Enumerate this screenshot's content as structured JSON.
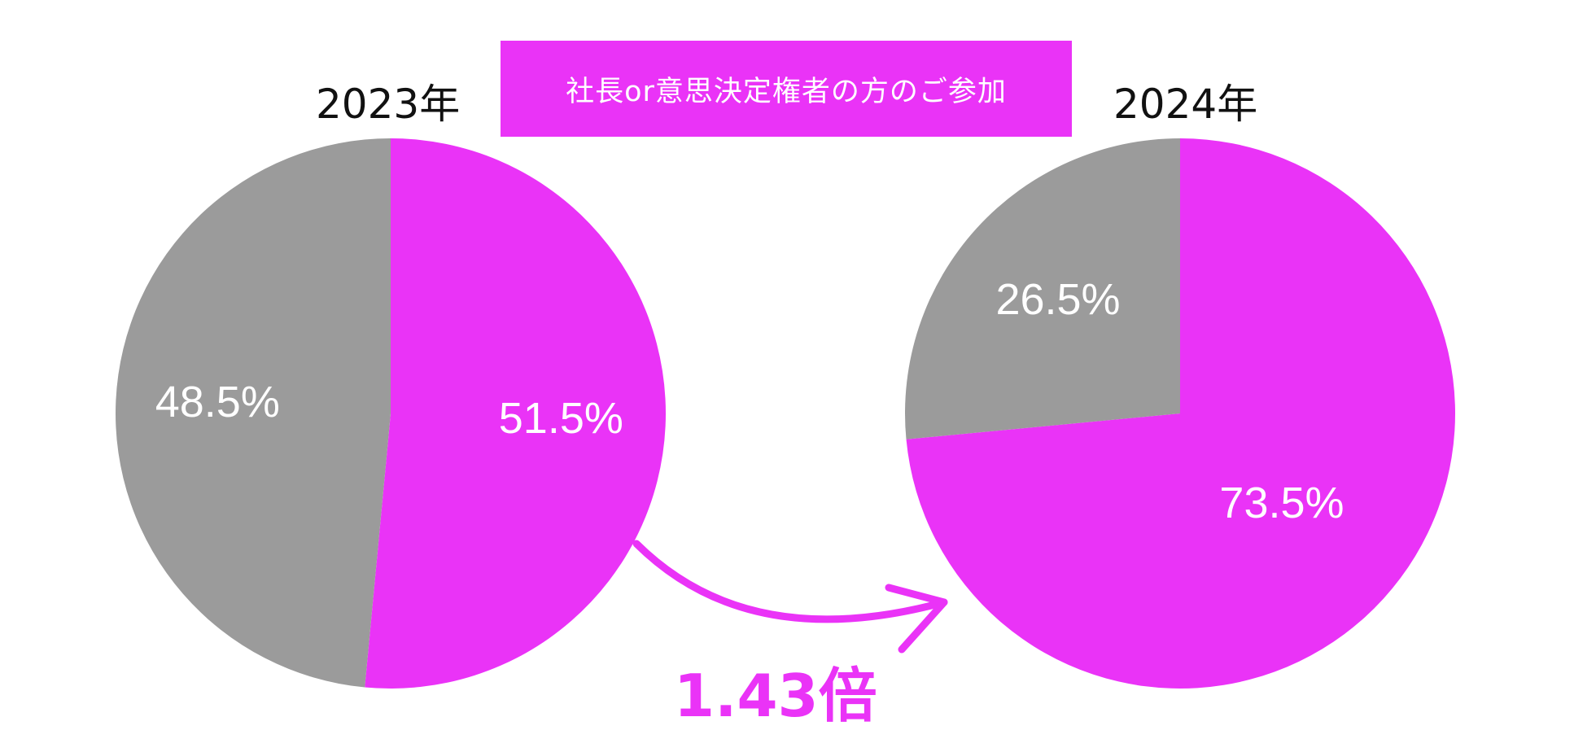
{
  "colors": {
    "accent": "#ea33f7",
    "gray": "#9b9b9b",
    "label": "#ffffff"
  },
  "banner": {
    "text": "社長or意思決定権者の方のご参加"
  },
  "multiplier": {
    "text": "1.43倍"
  },
  "chart_data": [
    {
      "type": "pie",
      "title": "2023年",
      "slices": [
        {
          "value": 51.5,
          "label": "51.5%",
          "color": "#ea33f7"
        },
        {
          "value": 48.5,
          "label": "48.5%",
          "color": "#9b9b9b"
        }
      ]
    },
    {
      "type": "pie",
      "title": "2024年",
      "slices": [
        {
          "value": 73.5,
          "label": "73.5%",
          "color": "#ea33f7"
        },
        {
          "value": 26.5,
          "label": "26.5%",
          "color": "#9b9b9b"
        }
      ]
    }
  ]
}
